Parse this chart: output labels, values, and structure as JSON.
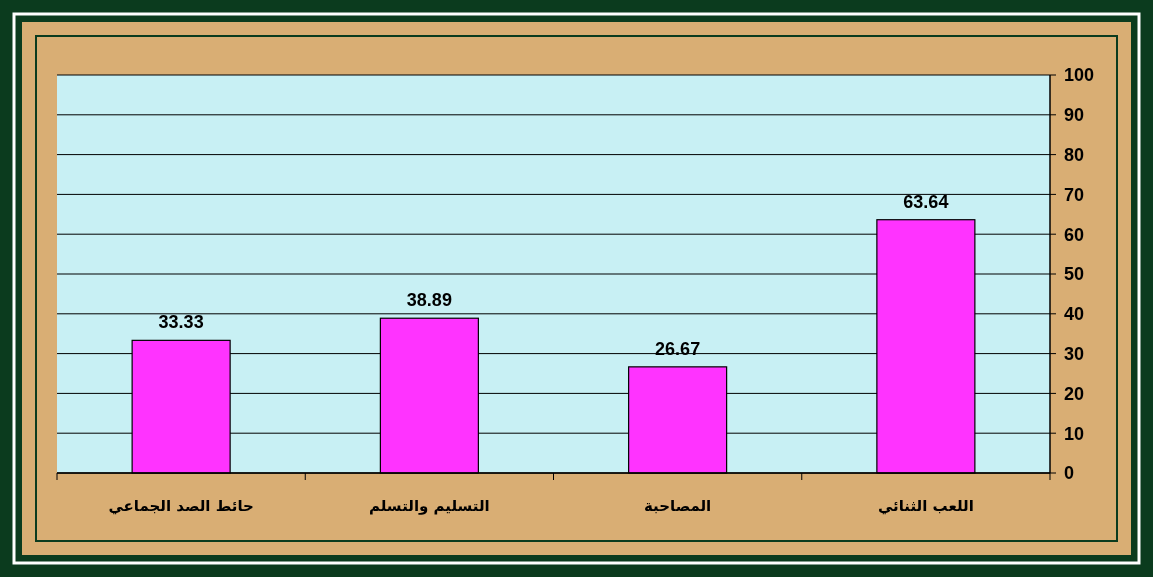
{
  "chart_data": {
    "type": "bar",
    "categories": [
      "حائط الصد الجماعي",
      "التسليم والتسلم",
      "المصاحبة",
      "اللعب الثنائي"
    ],
    "values": [
      33.33,
      38.89,
      26.67,
      63.64
    ],
    "color": "#ff33ff",
    "ylim": [
      0,
      100
    ],
    "yticks": [
      0,
      10,
      20,
      30,
      40,
      50,
      60,
      70,
      80,
      90,
      100
    ],
    "grid": "y",
    "data_labels": true
  }
}
